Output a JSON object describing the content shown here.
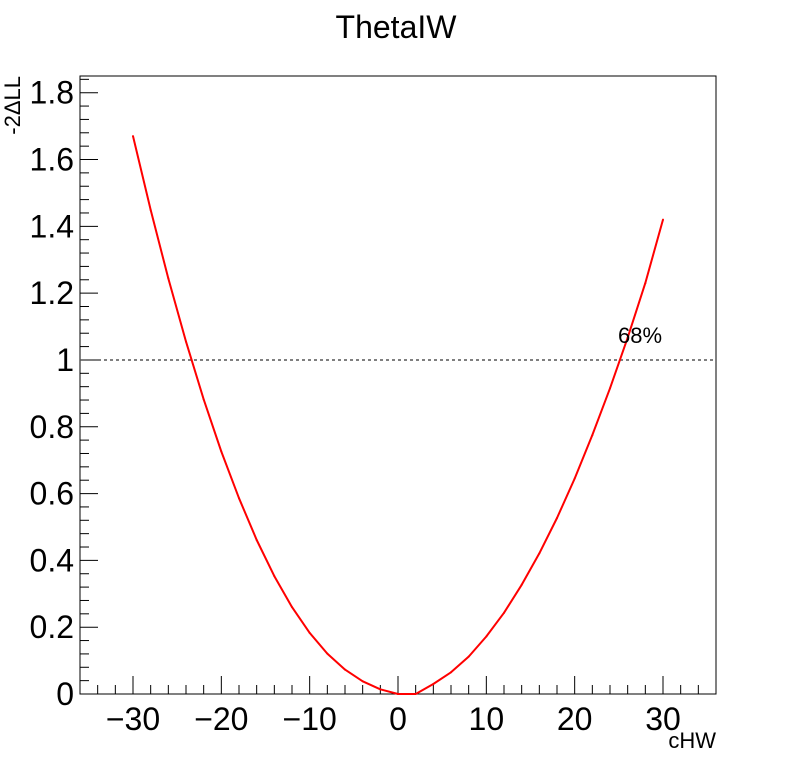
{
  "chart_data": {
    "type": "line",
    "title": "ThetaIW",
    "xlabel": "cHW",
    "ylabel": "-2ΔLL",
    "xlim": [
      -36,
      36
    ],
    "ylim": [
      0,
      1.85
    ],
    "x_ticks": [
      -30,
      -20,
      -10,
      0,
      10,
      20,
      30
    ],
    "x_tick_labels": [
      "−30",
      "−20",
      "−10",
      "0",
      "10",
      "20",
      "30"
    ],
    "y_ticks": [
      0,
      0.2,
      0.4,
      0.6,
      0.8,
      1,
      1.2,
      1.4,
      1.6,
      1.8
    ],
    "y_tick_labels": [
      "0",
      "0.2",
      "0.4",
      "0.6",
      "0.8",
      "1",
      "1.2",
      "1.4",
      "1.6",
      "1.8"
    ],
    "grid": false,
    "series": [
      {
        "color": "#ff0000",
        "x": [
          -30,
          -28,
          -26,
          -24,
          -22,
          -20,
          -18,
          -16,
          -14,
          -12,
          -10,
          -8,
          -6,
          -4,
          -2,
          0,
          2,
          4,
          6,
          8,
          10,
          12,
          14,
          16,
          18,
          20,
          22,
          24,
          26,
          28,
          30
        ],
        "y": [
          1.67,
          1.449,
          1.244,
          1.055,
          0.882,
          0.726,
          0.586,
          0.461,
          0.353,
          0.26,
          0.183,
          0.121,
          0.073,
          0.038,
          0.014,
          0.0,
          0.0,
          0.03,
          0.065,
          0.112,
          0.172,
          0.243,
          0.327,
          0.421,
          0.527,
          0.645,
          0.775,
          0.915,
          1.067,
          1.23,
          1.42
        ]
      }
    ],
    "reference_line": {
      "y": 1,
      "label": "68%",
      "style": "dotted",
      "color": "#555555"
    }
  }
}
